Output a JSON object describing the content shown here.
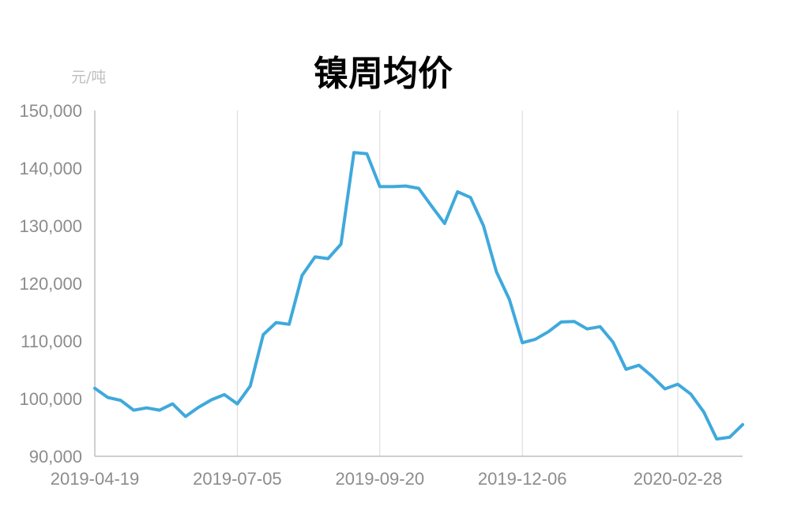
{
  "chart_data": {
    "type": "line",
    "title": "镍周均价",
    "unit_label": "元/吨",
    "ylim": [
      90000,
      150000
    ],
    "yticks": [
      "90,000",
      "100,000",
      "110,000",
      "120,000",
      "130,000",
      "140,000",
      "150,000"
    ],
    "ytick_values": [
      90000,
      100000,
      110000,
      120000,
      130000,
      140000,
      150000
    ],
    "xtick_labels": [
      "2019-04-19",
      "2019-07-05",
      "2019-09-20",
      "2019-12-06",
      "2020-02-28"
    ],
    "xtick_index": [
      0,
      11,
      22,
      33,
      45
    ],
    "grid": "vertical",
    "line_color": "#3fa9dc",
    "series": [
      {
        "values": [
          101800,
          100200,
          99700,
          98000,
          98400,
          98000,
          99100,
          96900,
          98500,
          99800,
          100700,
          99100,
          102200,
          111100,
          113200,
          112900,
          121400,
          124600,
          124300,
          126800,
          142700,
          142500,
          136800,
          136800,
          136900,
          136500,
          133400,
          130400,
          135900,
          134900,
          130000,
          122000,
          117200,
          109700,
          110300,
          111600,
          113300,
          113400,
          112100,
          112500,
          109800,
          105100,
          105800,
          103900,
          101700,
          102500,
          100800,
          97700,
          93000,
          93300,
          95500
        ]
      }
    ]
  }
}
